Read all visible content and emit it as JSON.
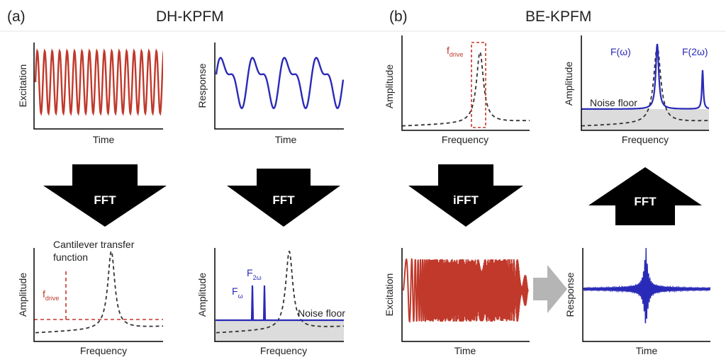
{
  "panels": {
    "a": {
      "label": "(a)",
      "title": "DH-KPFM"
    },
    "b": {
      "label": "(b)",
      "title": "BE-KPFM"
    }
  },
  "plots": {
    "dh_excitation": {
      "ylabel": "Excitation",
      "xlabel": "Time"
    },
    "dh_response": {
      "ylabel": "Response",
      "xlabel": "Time"
    },
    "dh_transfer": {
      "ylabel": "Amplitude",
      "xlabel": "Frequency",
      "annotation_line1": "Cantilever transfer",
      "annotation_line2": "function",
      "fdrive_main": "f",
      "fdrive_sub": "drive"
    },
    "dh_spectrum": {
      "ylabel": "Amplitude",
      "xlabel": "Frequency",
      "f_omega_main": "F",
      "f_omega_sub": "ω",
      "f_2omega_main": "F",
      "f_2omega_sub": "2ω",
      "noise": "Noise floor"
    },
    "be_spectrum_in": {
      "ylabel": "Amplitude",
      "xlabel": "Frequency",
      "fdrive_main": "f",
      "fdrive_sub": "drive"
    },
    "be_spectrum_out": {
      "ylabel": "Amplitude",
      "xlabel": "Frequency",
      "f_omega": "F(ω)",
      "f_2omega": "F(2ω)",
      "noise": "Noise floor"
    },
    "be_excitation": {
      "ylabel": "Excitation",
      "xlabel": "Time"
    },
    "be_response": {
      "ylabel": "Response",
      "xlabel": "Time"
    }
  },
  "arrows": {
    "a1": {
      "label": "FFT",
      "direction": "down"
    },
    "a2": {
      "label": "FFT",
      "direction": "down"
    },
    "b1": {
      "label": "iFFT",
      "direction": "down"
    },
    "b2": {
      "label": "FFT",
      "direction": "up"
    }
  },
  "colors": {
    "excitation": "#c0392b",
    "response": "#2a2ab8",
    "transfer": "#333333",
    "noise_fill": "#dcdcdc",
    "arrow": "#000000",
    "transition_arrow": "#b5b5b5"
  }
}
